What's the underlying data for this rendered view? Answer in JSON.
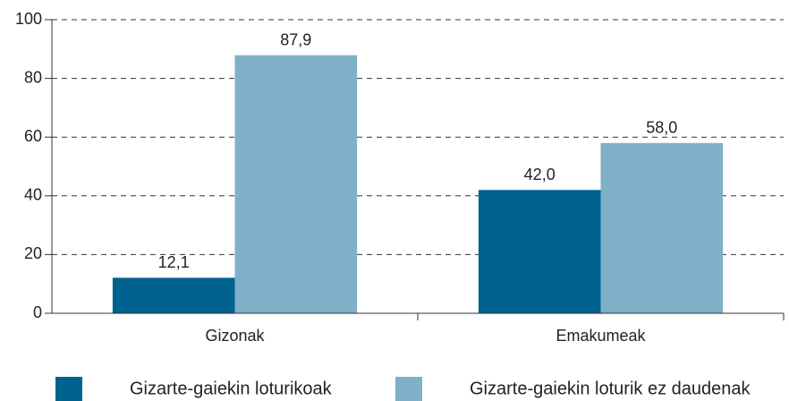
{
  "chart_data": {
    "type": "bar",
    "categories": [
      "Gizonak",
      "Emakumeak"
    ],
    "series": [
      {
        "name": "Gizarte-gaiekin loturikoak",
        "color": "#00628f",
        "values": [
          12.1,
          42.0
        ],
        "value_labels": [
          "12,1",
          "42,0"
        ]
      },
      {
        "name": "Gizarte-gaiekin loturik ez daudenak",
        "color": "#7fb0c8",
        "values": [
          87.9,
          58.0
        ],
        "value_labels": [
          "87,9",
          "58,0"
        ]
      }
    ],
    "ylim": [
      0,
      100
    ],
    "yticks": [
      0,
      20,
      40,
      60,
      80,
      100
    ],
    "grid": true
  }
}
